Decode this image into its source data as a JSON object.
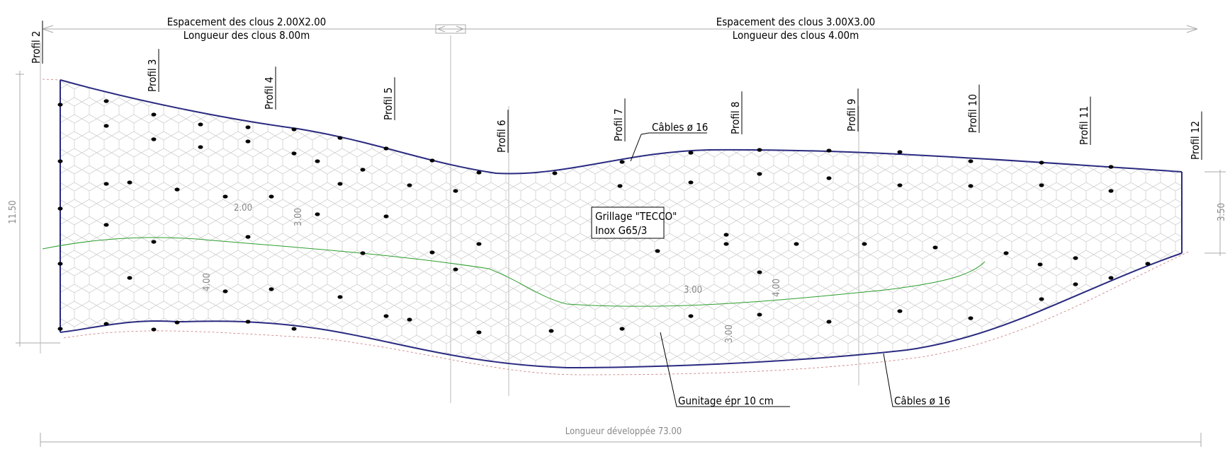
{
  "spacing": {
    "left_line1": "Espacement des clous 2.00X2.00",
    "left_line2": "Longueur des clous 8.00m",
    "right_line1": "Espacement des clous 3.00X3.00",
    "right_line2": "Longueur des clous 4.00m"
  },
  "profiles": [
    "Profil 2",
    "Profil 3",
    "Profil 4",
    "Profil 5",
    "Profil 6",
    "Profil 7",
    "Profil 8",
    "Profil 9",
    "Profil 10",
    "Profil 11",
    "Profil 12"
  ],
  "mesh_label": {
    "line1": "Grillage \"TECCO\"",
    "line2": "Inox G65/3"
  },
  "callouts": {
    "cables_top": "Câbles ø 16",
    "gunitage": "Gunitage épr 10 cm",
    "cables_bottom": "Câbles ø 16"
  },
  "bottom_dimension": "Longueur développée 73.00",
  "left_dimension": "11.50",
  "right_dimension": "3.50",
  "inner_dimensions": [
    "2.00",
    "3.00",
    "4.00",
    "3.00",
    "4.00",
    "3.00"
  ],
  "colors": {
    "boundary": "#2a2a80",
    "grid": "#c8c8c8",
    "gunite_line": "#2e9e2e",
    "dim": "#999999"
  }
}
